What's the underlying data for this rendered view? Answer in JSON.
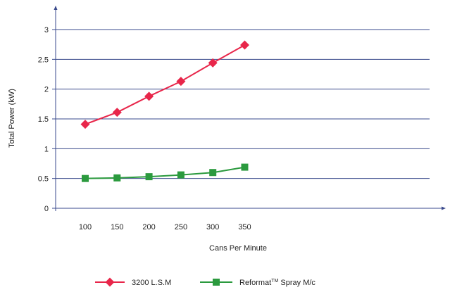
{
  "chart_data": {
    "type": "line",
    "x": [
      100,
      150,
      200,
      250,
      300,
      350
    ],
    "x_tick_labels": [
      "100",
      "150",
      "200",
      "250",
      "300",
      "350"
    ],
    "y_tick_labels": [
      "0",
      "0.5",
      "1",
      "1.5",
      "2",
      "2.5",
      "3"
    ],
    "xlabel": "Cans Per Minute",
    "ylabel": "Total Power (kW)",
    "ylim": [
      0,
      3
    ],
    "grid": "horizontal",
    "legend_position": "bottom",
    "series": [
      {
        "name": "3200 L.S.M",
        "marker": "diamond",
        "color": "#e8264a",
        "values": [
          1.41,
          1.61,
          1.88,
          2.13,
          2.44,
          2.74
        ]
      },
      {
        "name_main": "Reformat",
        "name_sup": "TM",
        "name_rest": " Spray M/c",
        "marker": "square",
        "color": "#2b9a3e",
        "values": [
          0.5,
          0.51,
          0.53,
          0.56,
          0.6,
          0.69
        ]
      }
    ],
    "grid_color": "#3a4a8c",
    "axis_color": "#3a4a8c"
  }
}
